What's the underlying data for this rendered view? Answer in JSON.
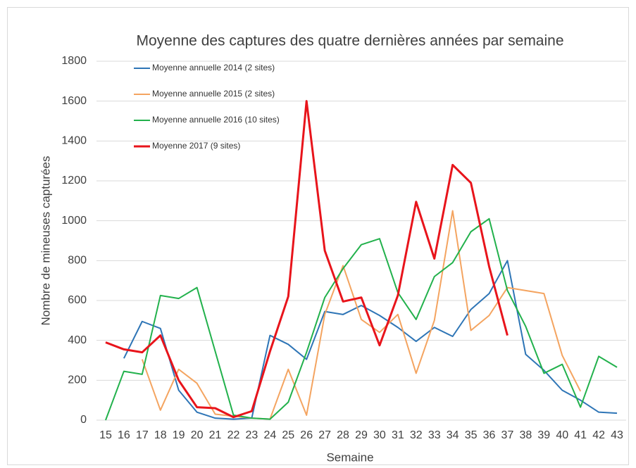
{
  "chart_data": {
    "type": "line",
    "title": "Moyenne des captures des quatre dernières années par semaine",
    "xlabel": "Semaine",
    "ylabel": "Nombre de mineuses capturées",
    "categories": [
      "15",
      "16",
      "17",
      "18",
      "19",
      "20",
      "21",
      "22",
      "23",
      "24",
      "25",
      "26",
      "27",
      "28",
      "29",
      "30",
      "31",
      "32",
      "33",
      "34",
      "35",
      "36",
      "37",
      "38",
      "39",
      "40",
      "41",
      "42",
      "43"
    ],
    "ylim": [
      0,
      1800
    ],
    "yticks": [
      0,
      200,
      400,
      600,
      800,
      1000,
      1200,
      1400,
      1600,
      1800
    ],
    "grid": true,
    "legend": "upper left",
    "series": [
      {
        "name": "Moyenne annuelle 2014 (2 sites)",
        "color": "#2e75b6",
        "width": 2,
        "values": [
          null,
          310,
          495,
          460,
          150,
          40,
          10,
          5,
          10,
          425,
          380,
          305,
          545,
          530,
          575,
          525,
          465,
          395,
          465,
          420,
          555,
          635,
          800,
          330,
          250,
          150,
          100,
          40,
          35
        ]
      },
      {
        "name": "Moyenne annuelle 2015 (2 sites)",
        "color": "#f4a460",
        "width": 2,
        "values": [
          null,
          null,
          305,
          50,
          255,
          185,
          30,
          20,
          10,
          5,
          255,
          25,
          530,
          775,
          505,
          440,
          530,
          235,
          500,
          1050,
          450,
          525,
          665,
          650,
          635,
          325,
          145,
          null,
          null
        ]
      },
      {
        "name": "Moyenne annuelle 2016 (10 sites)",
        "color": "#22b14c",
        "width": 2,
        "values": [
          0,
          245,
          230,
          625,
          610,
          665,
          345,
          25,
          10,
          5,
          90,
          340,
          615,
          760,
          880,
          910,
          640,
          505,
          720,
          790,
          945,
          1010,
          650,
          470,
          235,
          280,
          65,
          320,
          265
        ]
      },
      {
        "name": "Moyenne 2017 (9 sites)",
        "color": "#e8141b",
        "width": 3,
        "values": [
          390,
          355,
          340,
          425,
          200,
          65,
          60,
          15,
          45,
          345,
          620,
          1600,
          850,
          595,
          615,
          375,
          625,
          1095,
          810,
          1280,
          1190,
          770,
          425,
          null,
          null,
          null,
          null,
          null,
          null
        ]
      }
    ]
  }
}
